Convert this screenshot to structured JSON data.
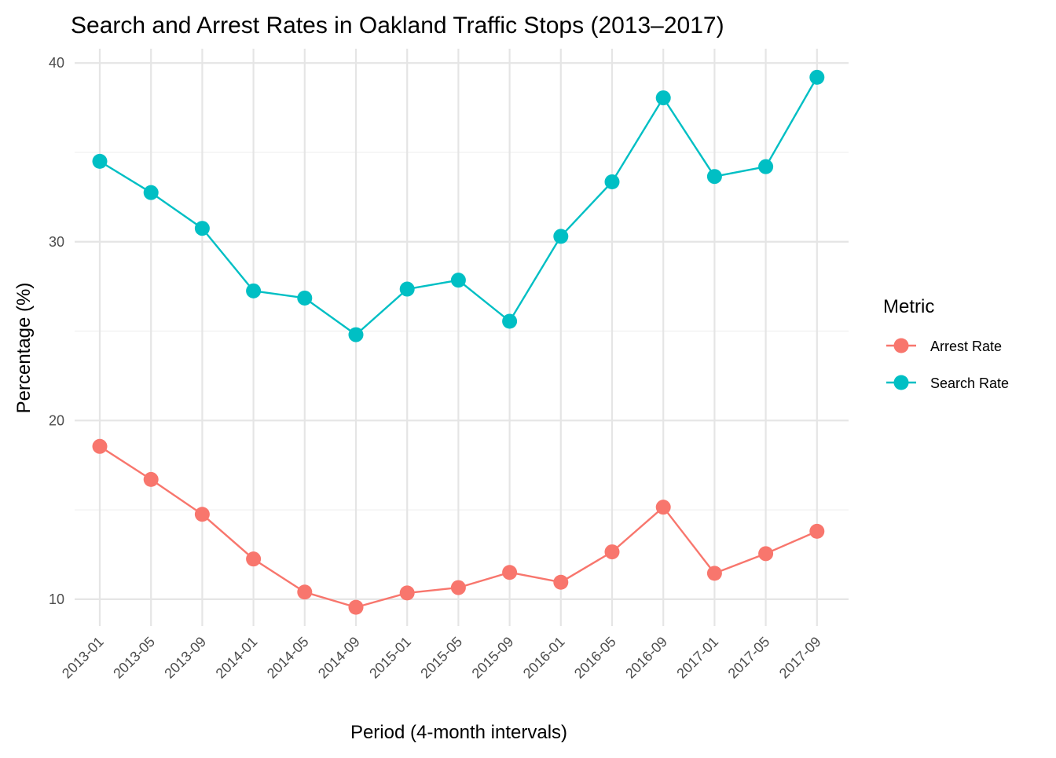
{
  "chart_data": {
    "type": "line",
    "title": "Search and Arrest Rates in Oakland Traffic Stops (2013–2017)",
    "xlabel": "Period (4-month intervals)",
    "ylabel": "Percentage (%)",
    "categories": [
      "2013-01",
      "2013-05",
      "2013-09",
      "2014-01",
      "2014-05",
      "2014-09",
      "2015-01",
      "2015-05",
      "2015-09",
      "2016-01",
      "2016-05",
      "2016-09",
      "2017-01",
      "2017-05",
      "2017-09"
    ],
    "ylim": [
      8.5,
      40.8
    ],
    "yticks": [
      10,
      20,
      30,
      40
    ],
    "grid": true,
    "legend": {
      "title": "Metric",
      "position": "right"
    },
    "series": [
      {
        "name": "Arrest Rate",
        "color": "#F8766D",
        "values": [
          18.55,
          16.7,
          14.75,
          12.25,
          10.4,
          9.55,
          10.35,
          10.65,
          11.5,
          10.95,
          12.65,
          15.15,
          11.45,
          12.55,
          13.8
        ]
      },
      {
        "name": "Search Rate",
        "color": "#00BFC4",
        "values": [
          34.5,
          32.75,
          30.75,
          27.25,
          26.85,
          24.8,
          27.35,
          27.85,
          25.55,
          30.3,
          33.35,
          38.05,
          33.65,
          34.2,
          39.2
        ]
      }
    ]
  }
}
